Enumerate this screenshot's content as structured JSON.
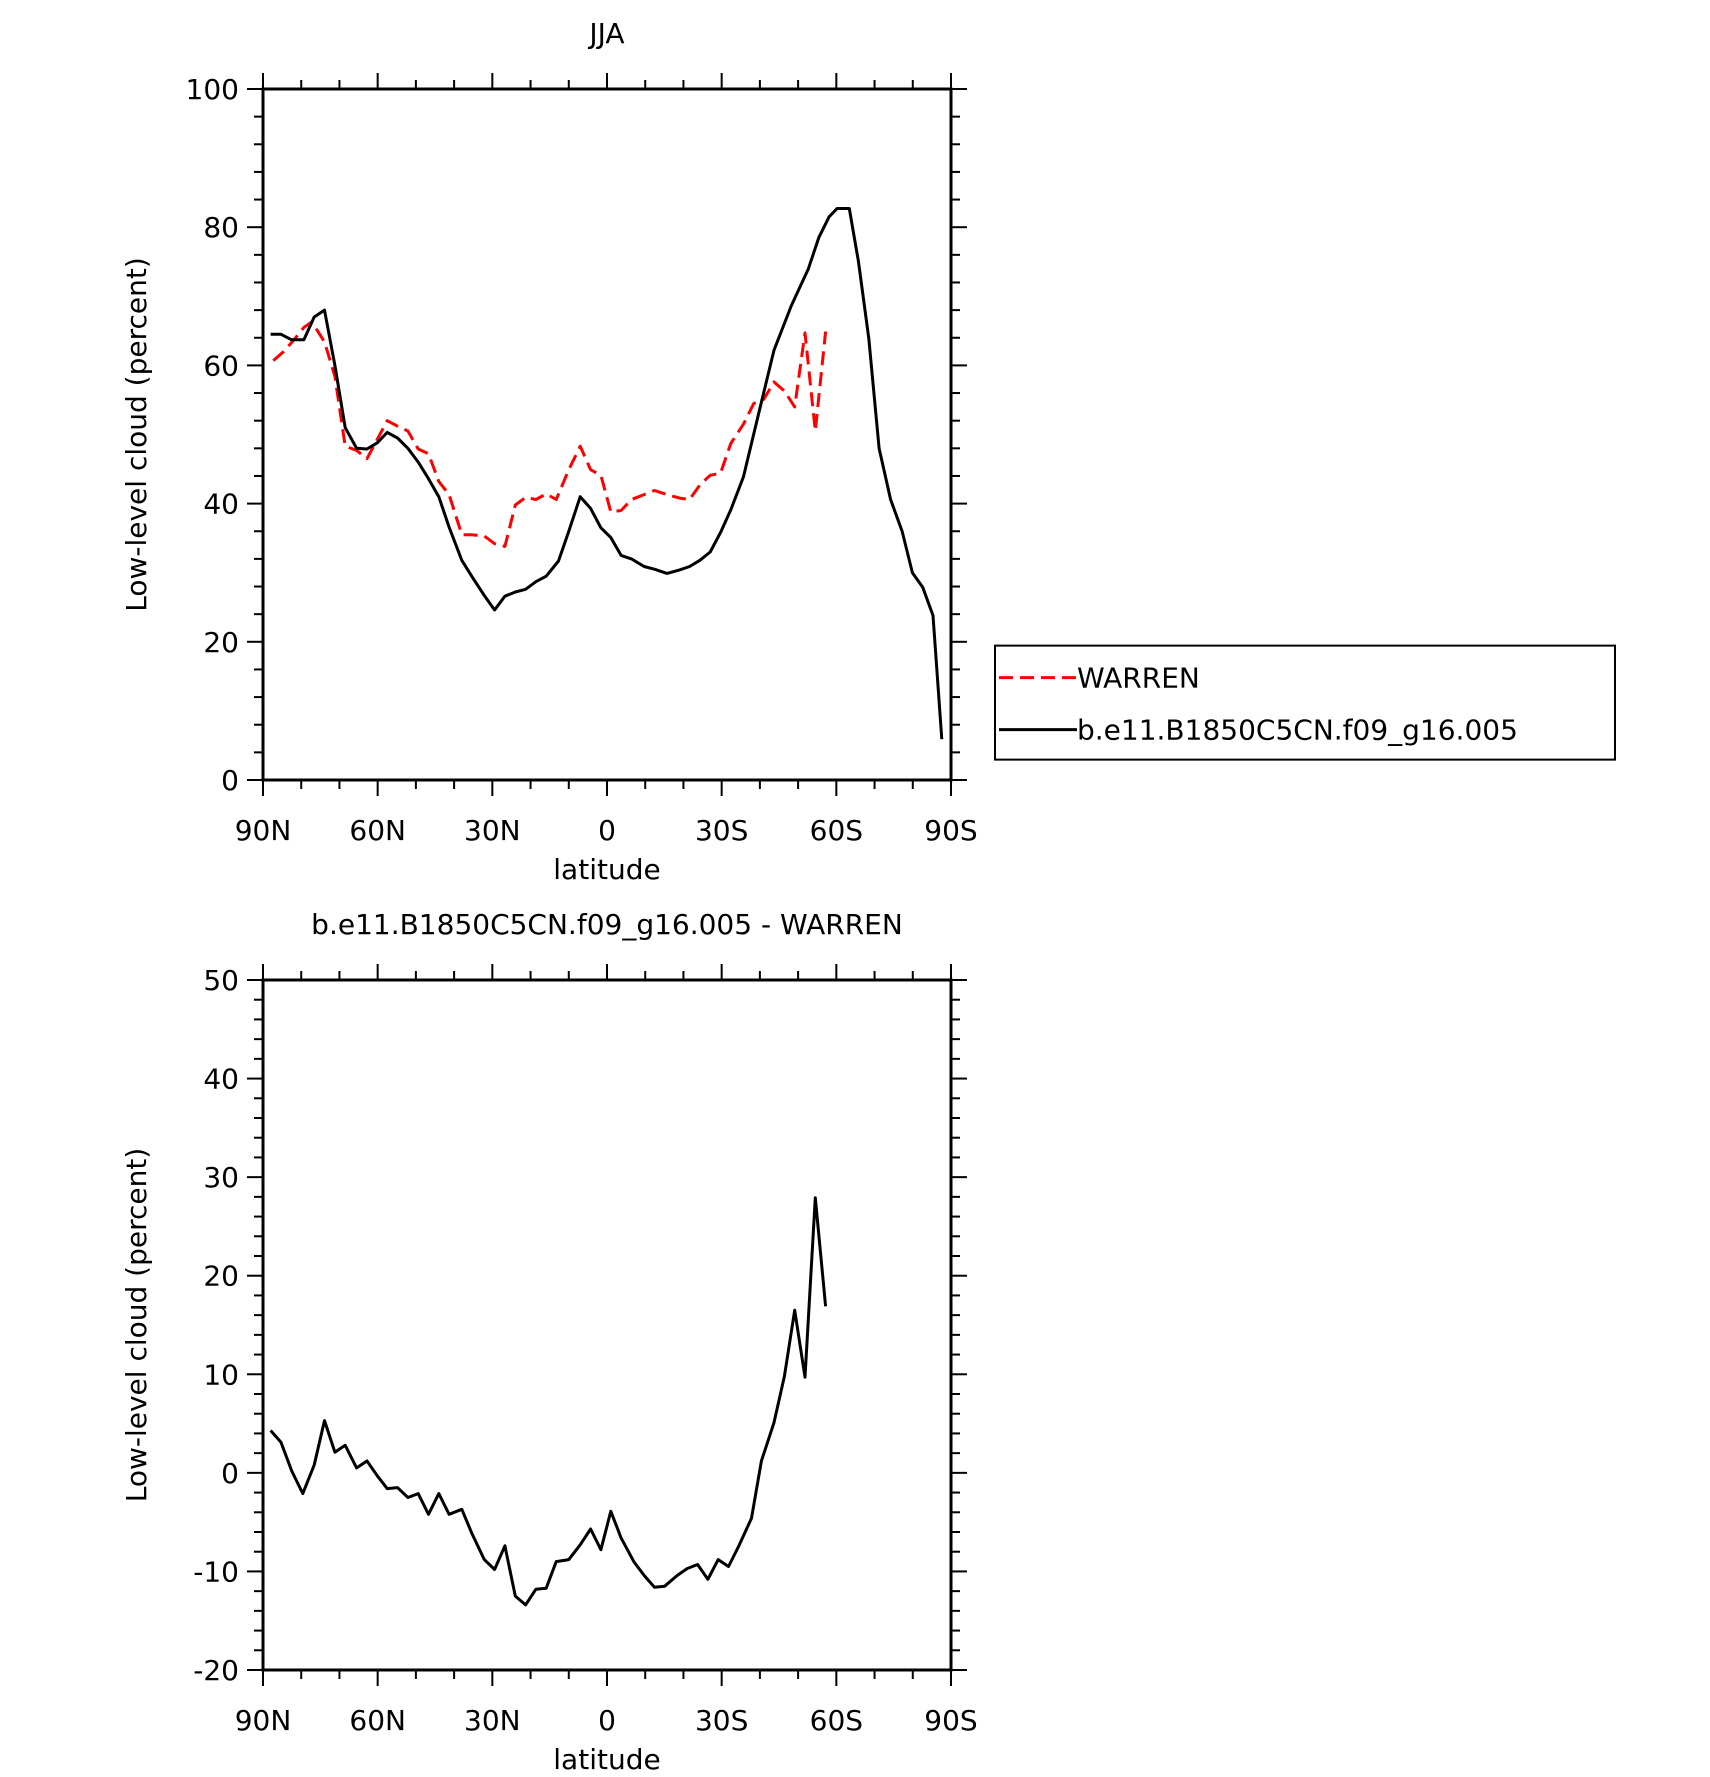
{
  "chart_data": [
    {
      "type": "line",
      "title": "JJA",
      "xlabel": "latitude",
      "ylabel": "Low-level cloud (percent)",
      "xlim": [
        90,
        -90
      ],
      "xticks": [
        {
          "value": 90,
          "label": "90N"
        },
        {
          "value": 60,
          "label": "60N"
        },
        {
          "value": 30,
          "label": "30N"
        },
        0,
        {
          "value": -30,
          "label": "30S"
        },
        {
          "value": -60,
          "label": "60S"
        },
        {
          "value": -90,
          "label": "90S"
        }
      ],
      "ylim": [
        0,
        100
      ],
      "yticks": [
        0,
        20,
        40,
        60,
        80,
        100
      ],
      "legend": "right",
      "series": [
        {
          "name": "WARREN",
          "color": "#ff0000",
          "style": "dashed",
          "x": [
            87.3,
            84.6,
            81.9,
            79.3,
            77.2,
            73.9,
            71.2,
            68.5,
            65.5,
            62.8,
            60.1,
            57.5,
            54.8,
            52.1,
            49.4,
            46.7,
            44,
            41.3,
            38,
            35.4,
            32.1,
            29.4,
            26.7,
            24,
            21.3,
            18.6,
            15.9,
            13.3,
            10,
            7,
            4.3,
            1.6,
            -1,
            -3.7,
            -6.4,
            -9.7,
            -12.4,
            -15.7,
            -19,
            -21.6,
            -24.3,
            -27,
            -29.7,
            -32.4,
            -35.7,
            -38.4,
            -41,
            -43.7,
            -46.4,
            -49.1,
            -51.8,
            -54.5,
            -57.2
          ],
          "values": [
            60.7,
            62,
            63.7,
            65.5,
            66.3,
            63.4,
            58.4,
            48.3,
            47.7,
            46.5,
            49.3,
            52,
            51.2,
            50.5,
            47.9,
            47.2,
            43.2,
            41.3,
            35.5,
            35.5,
            35.3,
            34.2,
            33.8,
            39.8,
            40.9,
            40.6,
            41.4,
            40.6,
            44.9,
            48.3,
            44.9,
            44.1,
            38.8,
            39,
            40.6,
            41.3,
            41.9,
            41.3,
            40.8,
            40.6,
            42.7,
            44.1,
            44.4,
            48.7,
            51.5,
            54.5,
            55.1,
            57.6,
            56.3,
            54,
            64.7,
            50.5,
            64.9
          ]
        },
        {
          "name": "b.e11.B1850C5CN.f09_g16.005",
          "color": "#000000",
          "style": "solid",
          "x": [
            88,
            85.3,
            82.5,
            79.3,
            76.6,
            73.9,
            71.2,
            68.5,
            65.5,
            62.8,
            60.1,
            57.5,
            54.8,
            52.1,
            49.4,
            46.7,
            44,
            41.3,
            38,
            35.4,
            32.1,
            29.4,
            26.7,
            24,
            21.3,
            18.6,
            15.9,
            12.7,
            10,
            7,
            4.3,
            1.6,
            -1,
            -3.7,
            -6.4,
            -9.7,
            -12.4,
            -15.7,
            -19,
            -21.6,
            -24.3,
            -27,
            -29.7,
            -32.4,
            -35.7,
            -39,
            -43.7,
            -48.2,
            -52.7,
            -55.4,
            -58.1,
            -60.2,
            -63.4,
            -65.8,
            -68.5,
            -71.2,
            -74.2,
            -77.2,
            -79.9,
            -82.6,
            -85.3,
            -87.6
          ],
          "values": [
            64.5,
            64.5,
            63.7,
            63.7,
            67,
            68,
            60,
            51,
            48,
            47.9,
            48.8,
            50.3,
            49.5,
            48,
            46,
            43.6,
            41,
            36.6,
            31.8,
            29.5,
            26.7,
            24.6,
            26.6,
            27.2,
            27.6,
            28.7,
            29.5,
            31.7,
            36,
            41,
            39.3,
            36.5,
            35.1,
            32.5,
            32,
            30.9,
            30.5,
            29.9,
            30.4,
            30.9,
            31.8,
            33,
            35.8,
            39.1,
            43.9,
            51.5,
            62.2,
            68.6,
            74,
            78.5,
            81.5,
            82.7,
            82.7,
            75,
            63.9,
            48,
            40.6,
            36,
            30,
            27.9,
            23.8,
            5.9
          ]
        }
      ]
    },
    {
      "type": "line",
      "title": "b.e11.B1850C5CN.f09_g16.005 - WARREN",
      "xlabel": "latitude",
      "ylabel": "Low-level cloud (percent)",
      "xlim": [
        90,
        -90
      ],
      "xticks": [
        {
          "value": 90,
          "label": "90N"
        },
        {
          "value": 60,
          "label": "60N"
        },
        {
          "value": 30,
          "label": "30N"
        },
        0,
        {
          "value": -30,
          "label": "30S"
        },
        {
          "value": -60,
          "label": "60S"
        },
        {
          "value": -90,
          "label": "90S"
        }
      ],
      "ylim": [
        -20,
        50
      ],
      "yticks": [
        -20,
        -10,
        0,
        10,
        20,
        30,
        40,
        50
      ],
      "series": [
        {
          "color": "#000000",
          "style": "solid",
          "x": [
            88,
            85.3,
            82.5,
            79.6,
            76.6,
            73.9,
            71.2,
            68.5,
            65.5,
            62.8,
            60.1,
            57.5,
            54.8,
            52.1,
            49.4,
            46.7,
            44,
            41.3,
            38,
            35.4,
            32.1,
            29.4,
            26.7,
            24,
            21.3,
            18.6,
            15.9,
            13.3,
            10,
            7,
            4.3,
            1.6,
            -1,
            -3.7,
            -7,
            -9.7,
            -12.4,
            -15.1,
            -18.4,
            -21,
            -23.7,
            -26.4,
            -29.1,
            -31.8,
            -34.5,
            -37.8,
            -40.4,
            -43.7,
            -46.4,
            -49.1,
            -51.8,
            -54.5,
            -57.2
          ],
          "values": [
            4.3,
            3.1,
            0.2,
            -2.1,
            0.8,
            5.3,
            2.1,
            2.8,
            0.5,
            1.2,
            -0.3,
            -1.6,
            -1.5,
            -2.5,
            -2.1,
            -4.2,
            -2.1,
            -4.2,
            -3.7,
            -6.1,
            -8.8,
            -9.8,
            -7.4,
            -12.5,
            -13.4,
            -11.8,
            -11.7,
            -9,
            -8.8,
            -7.3,
            -5.7,
            -7.8,
            -3.9,
            -6.6,
            -9,
            -10.4,
            -11.6,
            -11.5,
            -10.4,
            -9.7,
            -9.3,
            -10.8,
            -8.8,
            -9.5,
            -7.4,
            -4.6,
            1.2,
            5.1,
            9.8,
            16.5,
            9.7,
            27.9,
            16.9
          ]
        }
      ]
    }
  ]
}
